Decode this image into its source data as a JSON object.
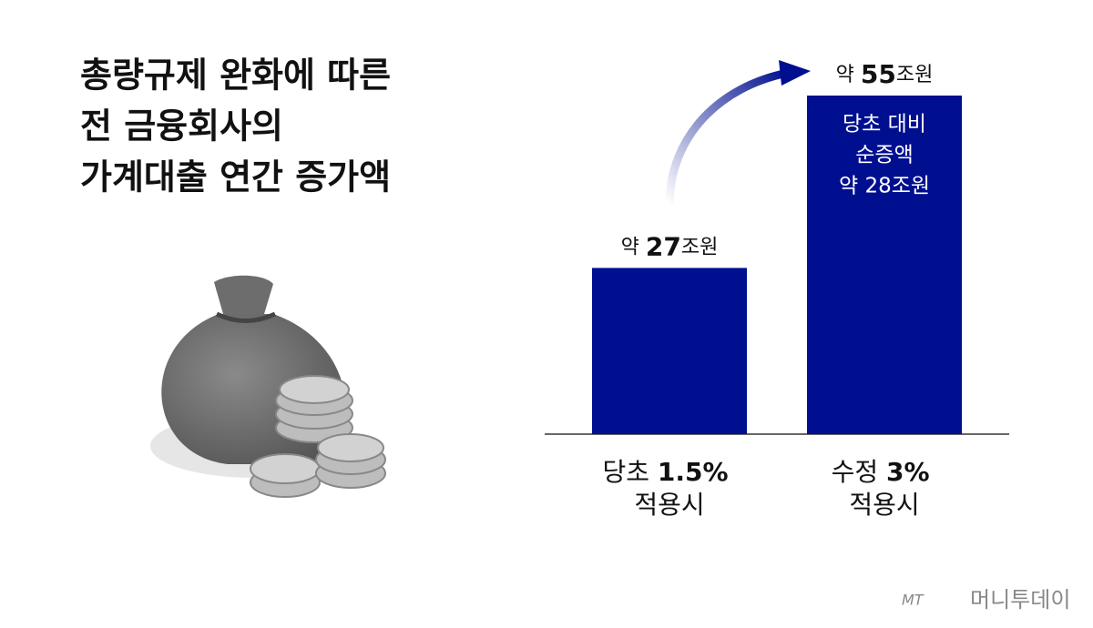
{
  "chart_data": {
    "type": "bar",
    "title": [
      "총량규제 완화에 따른",
      "전 금융회사의",
      "가계대출 연간 증가액"
    ],
    "categories": [
      "당초 1.5% 적용시",
      "수정 3% 적용시"
    ],
    "values": [
      27,
      55
    ],
    "value_labels": [
      "약 27조원",
      "약 55조원"
    ],
    "color": "#000f8f",
    "annotation": [
      "당초 대비",
      "순증액",
      "약 28조원"
    ]
  },
  "logo": {
    "mark": "MT",
    "name": "머니투데이"
  }
}
